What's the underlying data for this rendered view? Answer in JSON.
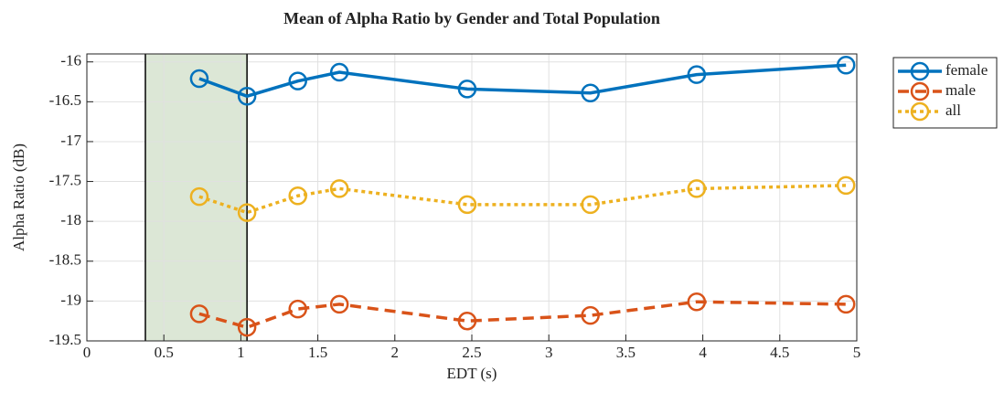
{
  "chart_data": {
    "type": "line",
    "title": "Mean of Alpha Ratio by Gender and Total Population",
    "xlabel": "EDT (s)",
    "ylabel": "Alpha Ratio (dB)",
    "x": [
      0.73,
      1.04,
      1.37,
      1.64,
      2.47,
      3.27,
      3.96,
      4.93
    ],
    "series": [
      {
        "name": "female",
        "color": "#0072bd",
        "dash": "solid",
        "values": [
          -16.21,
          -16.43,
          -16.24,
          -16.13,
          -16.34,
          -16.39,
          -16.16,
          -16.04
        ]
      },
      {
        "name": "male",
        "color": "#d95319",
        "dash": "dashed",
        "values": [
          -19.16,
          -19.33,
          -19.1,
          -19.04,
          -19.25,
          -19.18,
          -19.01,
          -19.04
        ]
      },
      {
        "name": "all",
        "color": "#edb120",
        "dash": "dotted",
        "values": [
          -17.69,
          -17.89,
          -17.68,
          -17.59,
          -17.79,
          -17.79,
          -17.59,
          -17.55
        ]
      }
    ],
    "highlight_xrange": [
      0.38,
      1.04
    ],
    "highlight_color": "#d6e3cf",
    "xlim": [
      0,
      5
    ],
    "xticks": [
      0,
      0.5,
      1,
      1.5,
      2,
      2.5,
      3,
      3.5,
      4,
      4.5,
      5
    ],
    "ylim": [
      -19.5,
      -15.9
    ],
    "yticks": [
      -19.5,
      -19,
      -18.5,
      -18,
      -17.5,
      -17,
      -16.5,
      -16
    ],
    "grid": true,
    "legend": "outside-right"
  }
}
